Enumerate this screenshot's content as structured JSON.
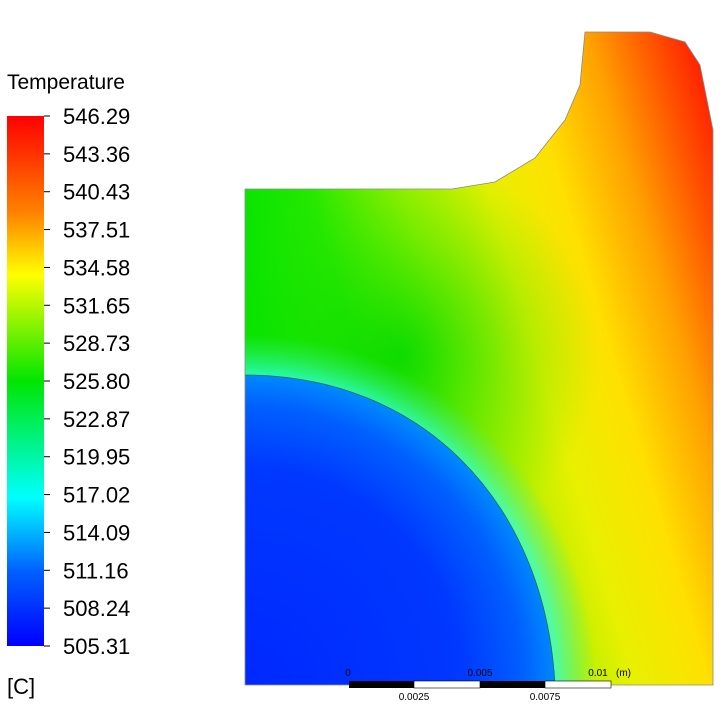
{
  "legend": {
    "title": "Temperature",
    "unit": "[C]",
    "min": 505.31,
    "max": 546.29,
    "ticks": [
      "546.29",
      "543.36",
      "540.43",
      "537.51",
      "534.58",
      "531.65",
      "528.73",
      "525.80",
      "522.87",
      "519.95",
      "517.02",
      "514.09",
      "511.16",
      "508.24",
      "505.31"
    ],
    "colors": [
      "#ff0000",
      "#ff8000",
      "#ffff00",
      "#00e600",
      "#00ffff",
      "#0060ff",
      "#0000ff"
    ]
  },
  "scale_bar": {
    "unit": "(m)",
    "top_labels": [
      "0",
      "0.005",
      "0.01"
    ],
    "bottom_labels": [
      "0.0025",
      "0.0075"
    ]
  }
}
